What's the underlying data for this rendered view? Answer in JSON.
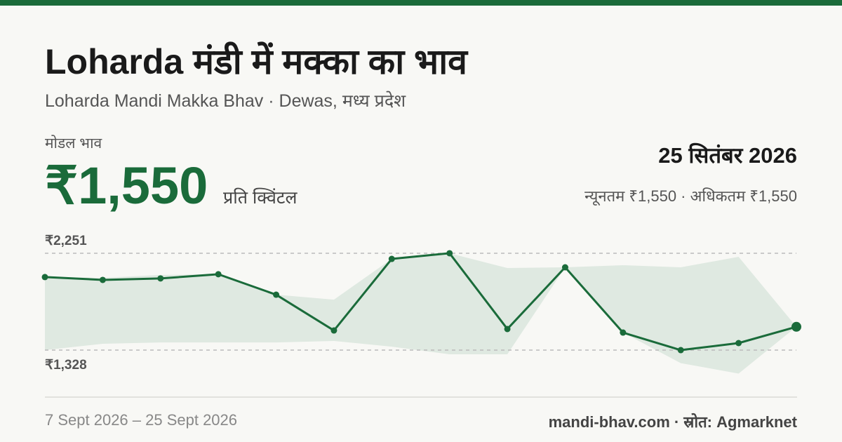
{
  "header": {
    "title": "Loharda मंडी में मक्का का भाव",
    "subtitle": "Loharda Mandi Makka Bhav · Dewas, मध्य प्रदेश"
  },
  "price": {
    "label": "मोडल भाव",
    "value": "₹1,550",
    "unit": "प्रति क्विंटल"
  },
  "date": "25 सितंबर 2026",
  "range": "न्यूनतम ₹1,550 · अधिकतम ₹1,550",
  "footer": {
    "period": "7 Sept 2026 – 25 Sept 2026",
    "source": "mandi-bhav.com · स्रोत: Agmarknet"
  },
  "chart_data": {
    "type": "line",
    "categories": [
      null,
      null,
      null,
      null,
      null,
      null,
      null,
      null,
      null,
      null,
      null,
      null,
      null,
      null
    ],
    "series": [
      {
        "color": "#1a6b3a",
        "values": [
          2024,
          1997,
          2011,
          2051,
          1856,
          1515,
          2197,
          2251,
          1529,
          2117,
          1495,
          1328,
          1395,
          1550
        ]
      }
    ],
    "band": {
      "color": "#dfe9e1",
      "high": [
        2024,
        2017,
        2044,
        2051,
        1856,
        1809,
        2197,
        2251,
        2110,
        2117,
        2137,
        2117,
        2217,
        1550
      ],
      "low": [
        1328,
        1388,
        1401,
        1401,
        1401,
        1415,
        1361,
        1288,
        1288,
        2117,
        1495,
        1204,
        1104,
        1550
      ]
    },
    "ylim": [
      1054,
      2458
    ],
    "yticks": [
      {
        "value": 2251,
        "label": "₹2,251"
      },
      {
        "value": 1328,
        "label": "₹1,328"
      }
    ],
    "grid": true
  }
}
